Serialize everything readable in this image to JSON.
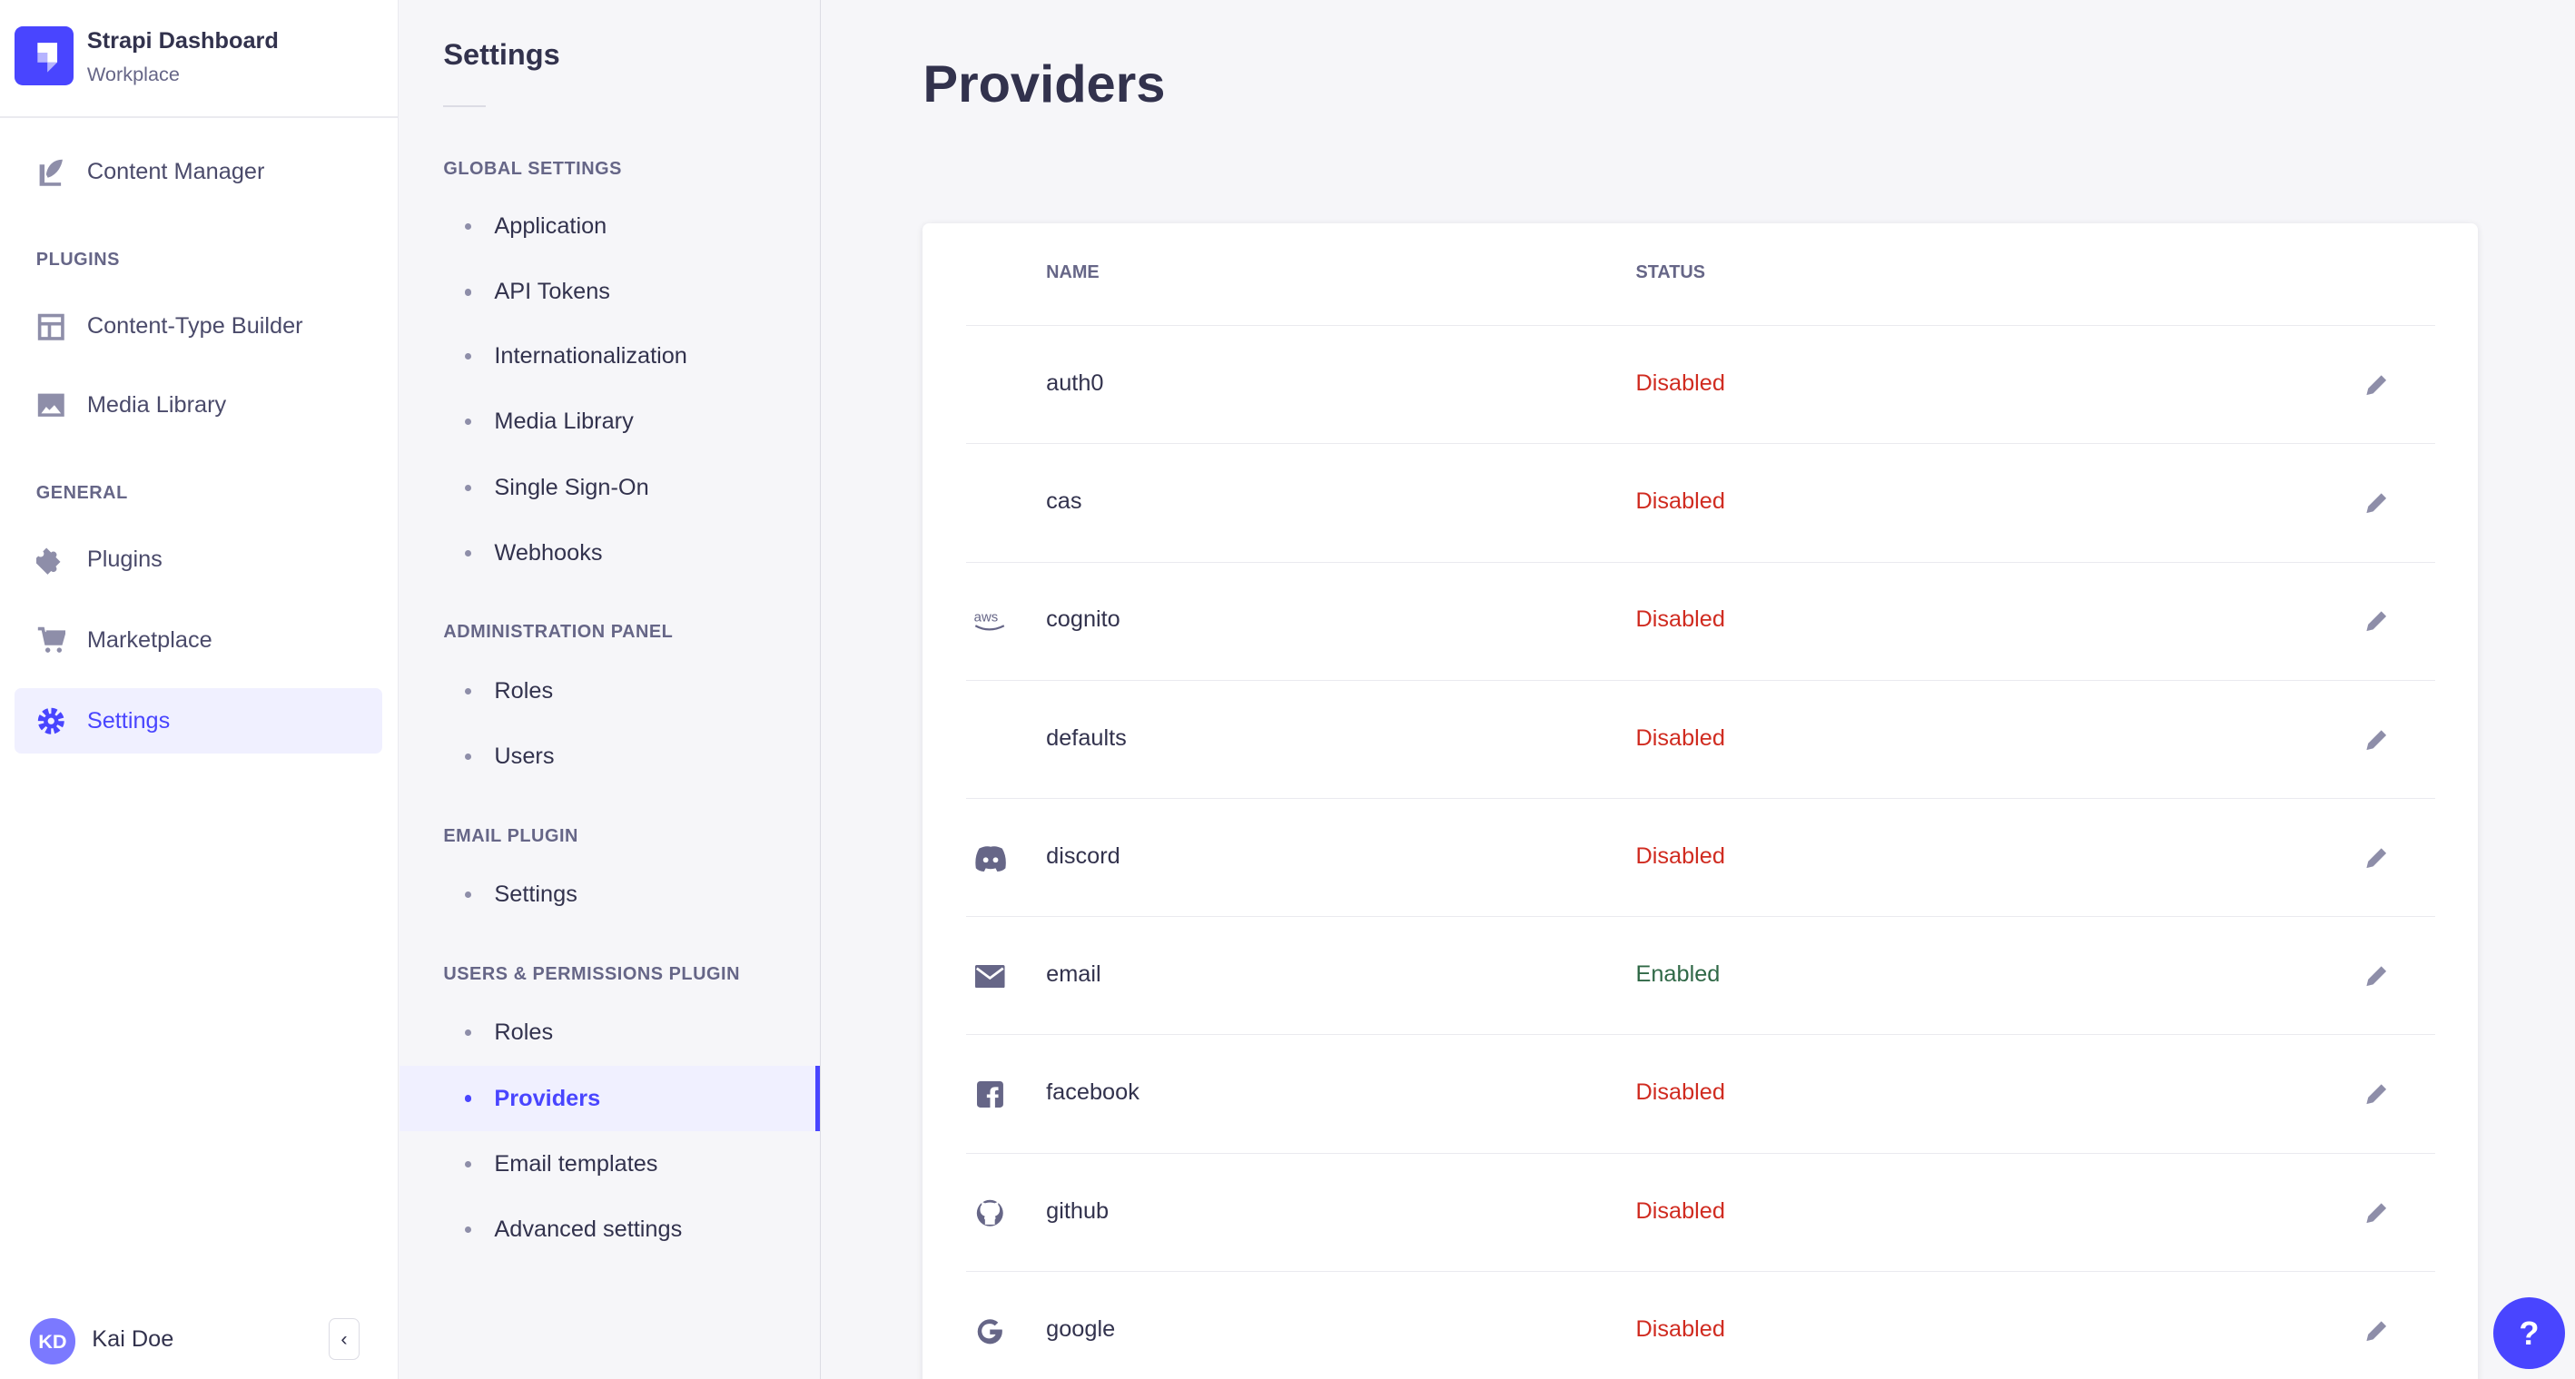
{
  "app": {
    "title": "Strapi Dashboard",
    "workspace": "Workplace"
  },
  "nav": {
    "content_manager": "Content Manager",
    "plugins_label": "PLUGINS",
    "content_type_builder": "Content-Type Builder",
    "media_library": "Media Library",
    "general_label": "GENERAL",
    "plugins": "Plugins",
    "marketplace": "Marketplace",
    "settings": "Settings",
    "active": "Settings"
  },
  "user": {
    "initials": "KD",
    "name": "Kai Doe"
  },
  "settings_nav": {
    "title": "Settings",
    "sections": [
      {
        "label": "GLOBAL SETTINGS",
        "items": [
          "Application",
          "API Tokens",
          "Internationalization",
          "Media Library",
          "Single Sign-On",
          "Webhooks"
        ]
      },
      {
        "label": "ADMINISTRATION PANEL",
        "items": [
          "Roles",
          "Users"
        ]
      },
      {
        "label": "EMAIL PLUGIN",
        "items": [
          "Settings"
        ]
      },
      {
        "label": "USERS & PERMISSIONS PLUGIN",
        "items": [
          "Roles",
          "Providers",
          "Email templates",
          "Advanced settings"
        ]
      }
    ],
    "active": "Providers"
  },
  "main": {
    "title": "Providers",
    "columns": {
      "name": "NAME",
      "status": "STATUS"
    },
    "rows": [
      {
        "name": "auth0",
        "status": "Disabled",
        "icon": ""
      },
      {
        "name": "cas",
        "status": "Disabled",
        "icon": ""
      },
      {
        "name": "cognito",
        "status": "Disabled",
        "icon": "aws-icon"
      },
      {
        "name": "defaults",
        "status": "Disabled",
        "icon": ""
      },
      {
        "name": "discord",
        "status": "Disabled",
        "icon": "discord-icon"
      },
      {
        "name": "email",
        "status": "Enabled",
        "icon": "envelope-icon"
      },
      {
        "name": "facebook",
        "status": "Disabled",
        "icon": "facebook-icon"
      },
      {
        "name": "github",
        "status": "Disabled",
        "icon": "github-icon"
      },
      {
        "name": "google",
        "status": "Disabled",
        "icon": "google-icon"
      }
    ]
  },
  "colors": {
    "accent": "#4945ff",
    "enabled": "#2f6846",
    "disabled": "#d02b20"
  },
  "help": {
    "label": "?"
  }
}
